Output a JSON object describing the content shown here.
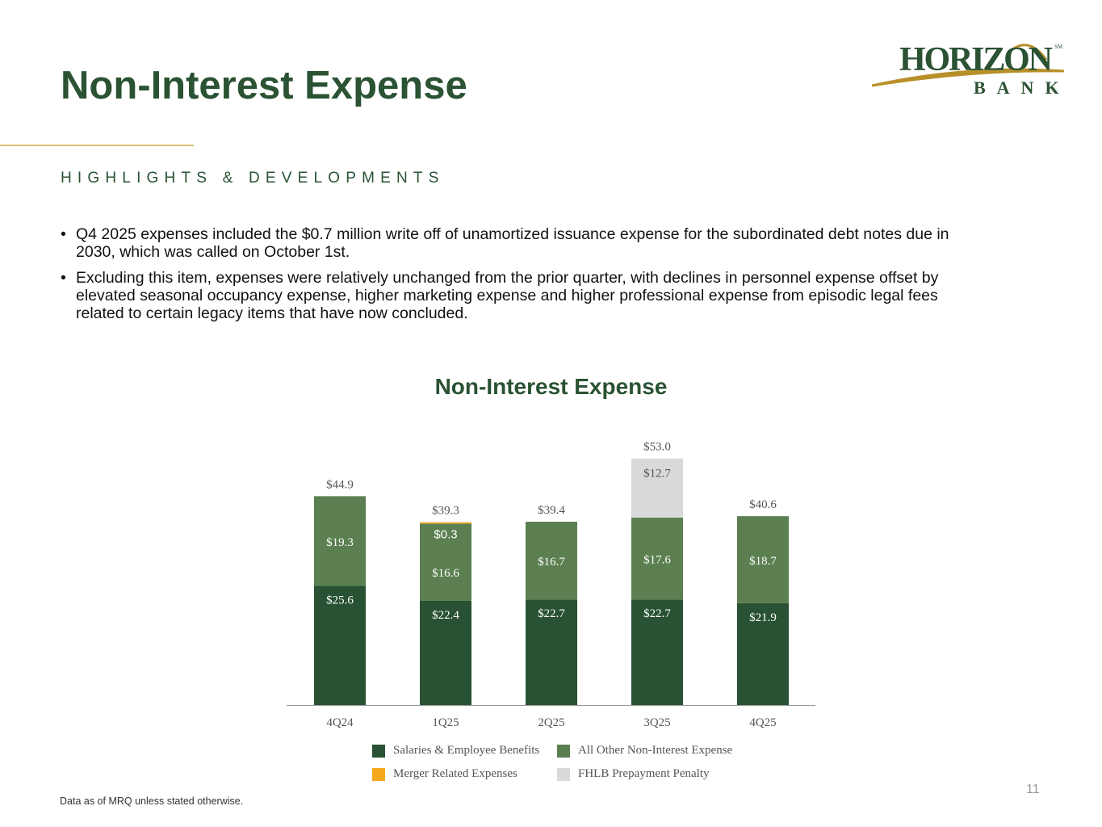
{
  "slide": {
    "title": "Non-Interest Expense",
    "subtitle": "HIGHLIGHTS & DEVELOPMENTS",
    "bullets": [
      "Q4 2025 expenses included the $0.7 million write off of unamortized issuance expense for the subordinated debt notes due in 2030, which was called on October 1st.",
      "Excluding this item, expenses were relatively unchanged from the prior quarter, with declines in personnel expense offset by elevated seasonal occupancy expense, higher marketing expense and higher professional expense from episodic legal fees related to certain legacy items that have now concluded."
    ],
    "footnote": "Data as of MRQ unless stated otherwise.",
    "page_number": "11",
    "logo": {
      "text": "HORIZON",
      "sub": "BANK",
      "mark": "SM"
    }
  },
  "chart_data": {
    "type": "bar",
    "stacked": true,
    "title": "Non-Interest Expense",
    "categories": [
      "4Q24",
      "1Q25",
      "2Q25",
      "3Q25",
      "4Q25"
    ],
    "series": [
      {
        "name": "Salaries & Employee Benefits",
        "color": "#285233",
        "values": [
          25.6,
          22.4,
          22.7,
          22.7,
          21.9
        ],
        "labels": [
          "$25.6",
          "$22.4",
          "$22.7",
          "$22.7",
          "$21.9"
        ]
      },
      {
        "name": "All Other Non-Interest Expense",
        "color": "#5b7f50",
        "values": [
          19.3,
          16.6,
          16.7,
          17.6,
          18.7
        ],
        "labels": [
          "$19.3",
          "$16.6",
          "$16.7",
          "$17.6",
          "$18.7"
        ]
      },
      {
        "name": "Merger Related Expenses",
        "color": "#f5a81c",
        "values": [
          0,
          0.3,
          0,
          0,
          0
        ],
        "labels": [
          "",
          "$0.3",
          "",
          "",
          ""
        ]
      },
      {
        "name": "FHLB Prepayment Penalty",
        "color": "#d9d9d9",
        "values": [
          0,
          0,
          0,
          12.7,
          0
        ],
        "labels": [
          "",
          "",
          "",
          "$12.7",
          ""
        ]
      }
    ],
    "totals": [
      44.9,
      39.3,
      39.4,
      53.0,
      40.6
    ],
    "total_labels": [
      "$44.9",
      "$39.3",
      "$39.4",
      "$53.0",
      "$40.6"
    ],
    "ylim": [
      0,
      53
    ],
    "grid": false,
    "legend_position": "bottom"
  }
}
